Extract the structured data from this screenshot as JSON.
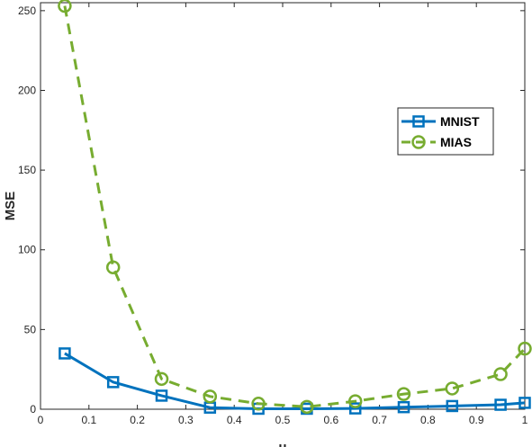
{
  "chart_data": {
    "type": "line",
    "xlabel": "μ",
    "ylabel": "MSE",
    "xlim": [
      0,
      1
    ],
    "ylim": [
      0,
      255
    ],
    "xticks": [
      0,
      0.1,
      0.2,
      0.3,
      0.4,
      0.5,
      0.6,
      0.7,
      0.8,
      0.9,
      1
    ],
    "xtick_labels": [
      "0",
      "0.1",
      "0.2",
      "0.3",
      "0.4",
      "0.5",
      "0.6",
      "0.7",
      "0.8",
      "0.9",
      "1"
    ],
    "yticks": [
      0,
      50,
      100,
      150,
      200,
      250
    ],
    "ytick_labels": [
      "0",
      "50",
      "100",
      "150",
      "200",
      "250"
    ],
    "grid": false,
    "legend_position": "right",
    "x": [
      0.05,
      0.15,
      0.25,
      0.35,
      0.45,
      0.55,
      0.65,
      0.75,
      0.85,
      0.95,
      1.0
    ],
    "series": [
      {
        "name": "MNIST",
        "color": "#0072BD",
        "line_style": "solid",
        "marker": "square",
        "values": [
          35,
          17,
          8.5,
          1,
          0.3,
          0.3,
          0.5,
          1.3,
          2,
          2.8,
          4
        ]
      },
      {
        "name": "MIAS",
        "color": "#77AC30",
        "line_style": "dashed",
        "marker": "circle",
        "values": [
          253,
          89,
          19,
          8,
          3.5,
          1.5,
          5,
          9.5,
          13,
          22,
          38
        ]
      }
    ]
  }
}
